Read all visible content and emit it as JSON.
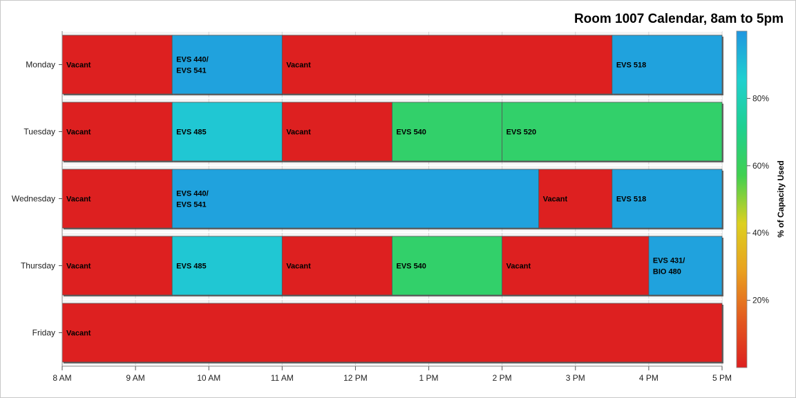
{
  "chart_data": {
    "type": "bar",
    "orientation": "horizontal-timeline",
    "title": "Room 1007 Calendar, 8am to 5pm",
    "xlabel": "",
    "ylabel": "",
    "x_range_hours": [
      8,
      17
    ],
    "x_ticks": [
      {
        "hour": 8,
        "label": "8 AM"
      },
      {
        "hour": 9,
        "label": "9 AM"
      },
      {
        "hour": 10,
        "label": "10 AM"
      },
      {
        "hour": 11,
        "label": "11 AM"
      },
      {
        "hour": 12,
        "label": "12 PM"
      },
      {
        "hour": 13,
        "label": "1 PM"
      },
      {
        "hour": 14,
        "label": "2 PM"
      },
      {
        "hour": 15,
        "label": "3 PM"
      },
      {
        "hour": 16,
        "label": "4 PM"
      },
      {
        "hour": 17,
        "label": "5 PM"
      }
    ],
    "days": [
      {
        "day": "Monday",
        "segments": [
          {
            "start": 8,
            "end": 9.5,
            "label": [
              "Vacant"
            ],
            "capacity": 0
          },
          {
            "start": 9.5,
            "end": 11,
            "label": [
              "EVS 440/",
              "EVS 541"
            ],
            "capacity": 97
          },
          {
            "start": 11,
            "end": 15.5,
            "label": [
              "Vacant"
            ],
            "capacity": 0
          },
          {
            "start": 15.5,
            "end": 17,
            "label": [
              "EVS 518"
            ],
            "capacity": 97
          }
        ]
      },
      {
        "day": "Tuesday",
        "segments": [
          {
            "start": 8,
            "end": 9.5,
            "label": [
              "Vacant"
            ],
            "capacity": 0
          },
          {
            "start": 9.5,
            "end": 11,
            "label": [
              "EVS 485"
            ],
            "capacity": 88
          },
          {
            "start": 11,
            "end": 12.5,
            "label": [
              "Vacant"
            ],
            "capacity": 0
          },
          {
            "start": 12.5,
            "end": 14,
            "label": [
              "EVS 540"
            ],
            "capacity": 63
          },
          {
            "start": 14,
            "end": 17,
            "label": [
              "EVS 520"
            ],
            "capacity": 63
          }
        ]
      },
      {
        "day": "Wednesday",
        "segments": [
          {
            "start": 8,
            "end": 9.5,
            "label": [
              "Vacant"
            ],
            "capacity": 0
          },
          {
            "start": 9.5,
            "end": 14.5,
            "label": [
              "EVS 440/",
              "EVS 541"
            ],
            "capacity": 97
          },
          {
            "start": 14.5,
            "end": 15.5,
            "label": [
              "Vacant"
            ],
            "capacity": 0
          },
          {
            "start": 15.5,
            "end": 17,
            "label": [
              "EVS 518"
            ],
            "capacity": 97
          }
        ]
      },
      {
        "day": "Thursday",
        "segments": [
          {
            "start": 8,
            "end": 9.5,
            "label": [
              "Vacant"
            ],
            "capacity": 0
          },
          {
            "start": 9.5,
            "end": 11,
            "label": [
              "EVS 485"
            ],
            "capacity": 88
          },
          {
            "start": 11,
            "end": 12.5,
            "label": [
              "Vacant"
            ],
            "capacity": 0
          },
          {
            "start": 12.5,
            "end": 14,
            "label": [
              "EVS 540"
            ],
            "capacity": 63
          },
          {
            "start": 14,
            "end": 16,
            "label": [
              "Vacant"
            ],
            "capacity": 0
          },
          {
            "start": 16,
            "end": 17,
            "label": [
              "EVS 431/",
              "BIO 480"
            ],
            "capacity": 97
          }
        ]
      },
      {
        "day": "Friday",
        "segments": [
          {
            "start": 8,
            "end": 17,
            "label": [
              "Vacant"
            ],
            "capacity": 0
          }
        ]
      }
    ],
    "colorbar": {
      "title": "% of Capacity Used",
      "range": [
        0,
        100
      ],
      "ticks": [
        {
          "value": 20,
          "label": "20%"
        },
        {
          "value": 40,
          "label": "40%"
        },
        {
          "value": 60,
          "label": "60%"
        },
        {
          "value": 80,
          "label": "80%"
        }
      ],
      "stops": [
        "#dd2020",
        "#e35a20",
        "#e9a020",
        "#ddd020",
        "#40d050",
        "#1ed090",
        "#20d0d0",
        "#2096e0"
      ]
    }
  }
}
